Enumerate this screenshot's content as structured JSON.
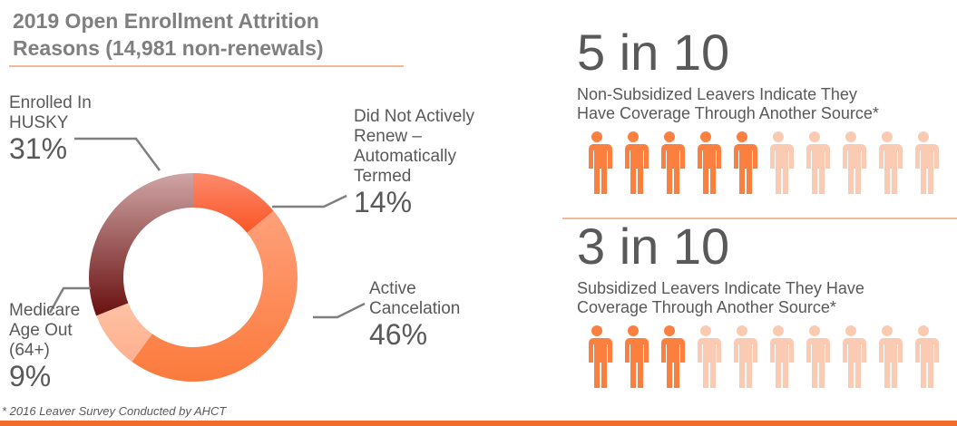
{
  "chart_data": {
    "type": "pie",
    "title": "2019 Open Enrollment Attrition Reasons (14,981 non-renewals)",
    "slices": [
      {
        "label": "Did Not Actively Renew – Automatically Termed",
        "value": 14,
        "display": "14%",
        "colors": [
          "#fd8a6c",
          "#fa5526"
        ]
      },
      {
        "label": "Active Cancelation",
        "value": 46,
        "display": "46%",
        "colors": [
          "#ffa07a",
          "#fb7a3c"
        ]
      },
      {
        "label": "Medicare Age Out (64+)",
        "value": 9,
        "display": "9%",
        "colors": [
          "#ffc2a4",
          "#fdb08e"
        ]
      },
      {
        "label": "Enrolled In HUSKY",
        "value": 31,
        "display": "31%",
        "colors": [
          "#cfa5a5",
          "#6a1010"
        ]
      }
    ]
  },
  "labels": {
    "husky": [
      "Enrolled In",
      "HUSKY"
    ],
    "renew": [
      "Did Not Actively",
      "Renew –",
      "Automatically",
      "Termed"
    ],
    "active": [
      "Active",
      "Cancelation"
    ],
    "medicare": [
      "Medicare",
      "Age Out",
      "(64+)"
    ]
  },
  "stats": [
    {
      "headline": "5 in 10",
      "text": [
        "Non-Subsidized Leavers Indicate They",
        "Have Coverage Through Another Source*"
      ],
      "filled": 5,
      "total": 10
    },
    {
      "headline": "3 in 10",
      "text": [
        "Subsidized Leavers Indicate They Have",
        "Coverage Through Another Source*"
      ],
      "filled": 3,
      "total": 10
    }
  ],
  "colors": {
    "filled": "#fb8040",
    "empty": "#fbcab2"
  },
  "footnote": "* 2016 Leaver Survey Conducted by AHCT"
}
